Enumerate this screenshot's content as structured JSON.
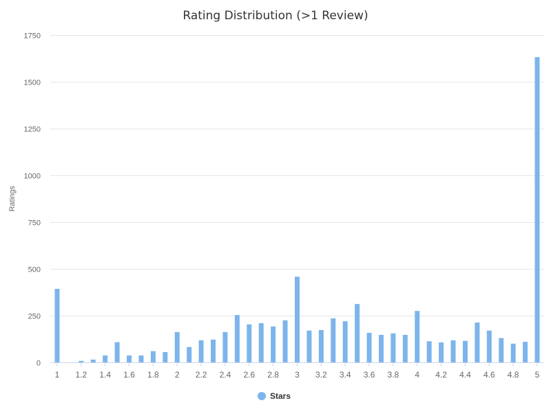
{
  "chart_data": {
    "type": "bar",
    "title": "Rating Distribution (>1 Review)",
    "xlabel": "",
    "ylabel": "Ratings",
    "ylim": [
      0,
      1750
    ],
    "yticks": [
      0,
      250,
      500,
      750,
      1000,
      1250,
      1500,
      1750
    ],
    "xtick_labels": [
      "1",
      "1.2",
      "1.4",
      "1.6",
      "1.8",
      "2",
      "2.2",
      "2.4",
      "2.6",
      "2.8",
      "3",
      "3.2",
      "3.4",
      "3.6",
      "3.8",
      "4",
      "4.2",
      "4.4",
      "4.6",
      "4.8",
      "5"
    ],
    "grid": true,
    "legend": "bottom-center",
    "color": "#7cb5ec",
    "x": [
      1.0,
      1.1,
      1.2,
      1.3,
      1.4,
      1.5,
      1.6,
      1.7,
      1.8,
      1.9,
      2.0,
      2.1,
      2.2,
      2.3,
      2.4,
      2.5,
      2.6,
      2.7,
      2.8,
      2.9,
      3.0,
      3.1,
      3.2,
      3.3,
      3.4,
      3.5,
      3.6,
      3.7,
      3.8,
      3.9,
      4.0,
      4.1,
      4.2,
      4.3,
      4.4,
      4.5,
      4.6,
      4.7,
      4.8,
      4.9,
      5.0
    ],
    "series": [
      {
        "name": "Stars",
        "values": [
          393,
          0,
          8,
          15,
          37,
          108,
          37,
          37,
          60,
          55,
          162,
          82,
          118,
          122,
          162,
          253,
          203,
          210,
          192,
          225,
          458,
          170,
          173,
          235,
          220,
          312,
          158,
          147,
          155,
          147,
          275,
          113,
          107,
          118,
          115,
          213,
          170,
          130,
          100,
          110,
          1632
        ]
      }
    ]
  }
}
